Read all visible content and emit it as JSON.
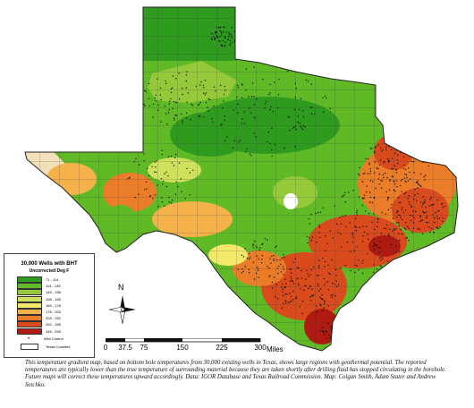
{
  "legend": {
    "title": "30,000 Wells with BHT",
    "subtitle": "Uncorrected Deg F",
    "classes": [
      {
        "label": "71 - 114",
        "color": "#2e9b1f"
      },
      {
        "label": "114 - 145",
        "color": "#5fba26"
      },
      {
        "label": "145 - 158",
        "color": "#96c93a"
      },
      {
        "label": "158 - 165",
        "color": "#cfe05a"
      },
      {
        "label": "165 - 178",
        "color": "#f3e86a"
      },
      {
        "label": "178 - 203",
        "color": "#f5b24a"
      },
      {
        "label": "203 - 252",
        "color": "#ec7d28"
      },
      {
        "label": "252 - 345",
        "color": "#d94a1c"
      },
      {
        "label": "345 - 535",
        "color": "#b01a10"
      }
    ],
    "well_control_label": "Well Control",
    "texas_counties_label": "Texas Counties"
  },
  "north_label": "N",
  "scale_bar": {
    "ticks": [
      "0",
      "37.5",
      "75",
      "150",
      "225",
      "300"
    ],
    "unit": "Miles"
  },
  "caption": {
    "text": "This temperature gradient map, based on bottom hole temperatures from 30,000 existing wells in Texas, shows large regions with geothermal potential. The reported temperatures are typically lower than the true temperature of surrounding material because they are taken shortly after drilling fluid has stopped circulating in the borehole. Future maps will correct these temperatures upward accordingly. Data: IGOR Database and Texas Railroad Commission. Map: Colgan Smith, Adam Stater and Andrew Setchko."
  },
  "colors": {
    "no_data": "#f3dfb8",
    "county_line": "#333333",
    "well_dot": "#111111"
  }
}
